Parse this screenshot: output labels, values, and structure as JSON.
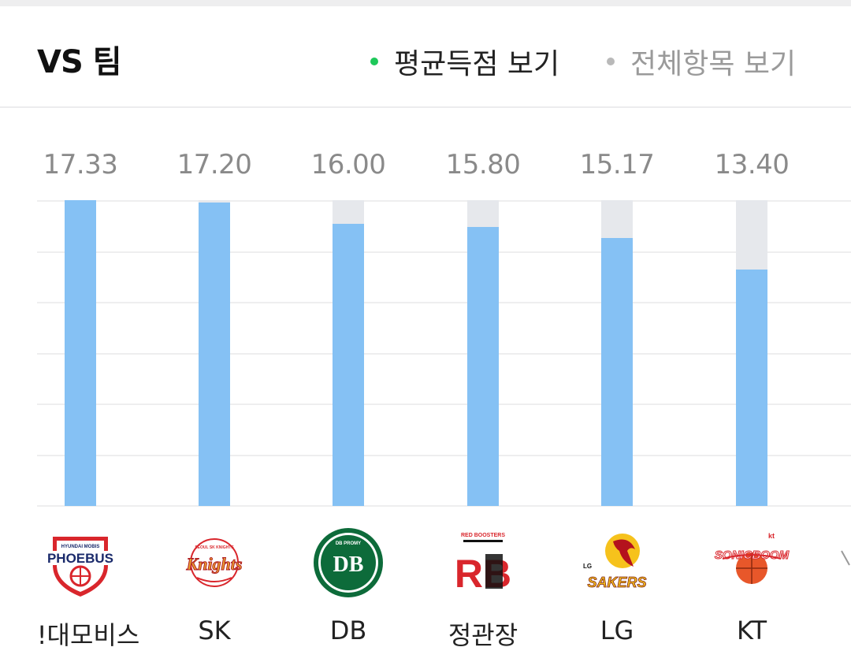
{
  "header": {
    "title": "VS 팀",
    "filter_avg": "평균득점 보기",
    "filter_all": "전체항목 보기"
  },
  "colors": {
    "active_dot": "#1ec85a",
    "inactive_dot": "#b9b9b9",
    "bar_fill": "#85c1f4",
    "bar_track": "#e6e8ec"
  },
  "chart_data": {
    "type": "bar",
    "categories": [
      "현대모비스",
      "SK",
      "DB",
      "정관장",
      "LG",
      "KT"
    ],
    "values": [
      17.33,
      17.2,
      16.0,
      15.8,
      15.17,
      13.4
    ],
    "value_labels": [
      "17.33",
      "17.20",
      "16.00",
      "15.80",
      "15.17",
      "13.40"
    ],
    "ylim": [
      0,
      17.33
    ],
    "grid": true
  },
  "teams": [
    {
      "name": "!대모비스",
      "logo": "phoebus-logo",
      "logo_text": "PHOEBUS",
      "logo_subtext": "HYUNDAI MOBIS"
    },
    {
      "name": "SK",
      "logo": "knights-logo",
      "logo_text": "Knights",
      "logo_subtext": "SEOUL SK KNIGHTS"
    },
    {
      "name": "DB",
      "logo": "promy-logo",
      "logo_text": "DB",
      "logo_subtext": "DB PROMY"
    },
    {
      "name": "정관장",
      "logo": "red-boosters-logo",
      "logo_text": "RB",
      "logo_subtext": "RED BOOSTERS"
    },
    {
      "name": "LG",
      "logo": "sakers-logo",
      "logo_text": "SAKERS",
      "logo_subtext": "LG"
    },
    {
      "name": "KT",
      "logo": "sonicboom-logo",
      "logo_text": "SONICBOOM",
      "logo_subtext": "kt"
    }
  ]
}
